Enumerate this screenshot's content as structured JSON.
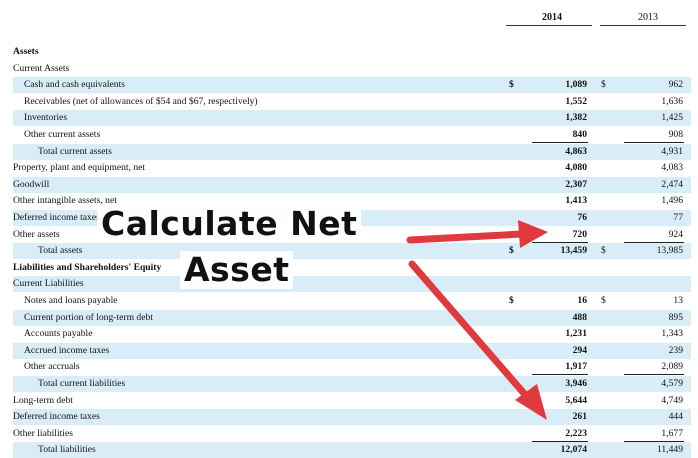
{
  "columns": {
    "year1": "2014",
    "year2": "2013"
  },
  "rows": [
    {
      "label": "Assets",
      "indent": 0,
      "bold": true,
      "shaded": false,
      "c1": "",
      "v1": "",
      "c2": "",
      "v2": ""
    },
    {
      "label": "Current Assets",
      "indent": 0,
      "bold": false,
      "shaded": false,
      "c1": "",
      "v1": "",
      "c2": "",
      "v2": ""
    },
    {
      "label": "Cash and cash equivalents",
      "indent": 1,
      "bold": false,
      "shaded": true,
      "c1": "$",
      "v1": "1,089",
      "c2": "$",
      "v2": "962"
    },
    {
      "label": "Receivables (net of allowances of $54 and $67, respectively)",
      "indent": 1,
      "bold": false,
      "shaded": false,
      "c1": "",
      "v1": "1,552",
      "c2": "",
      "v2": "1,636"
    },
    {
      "label": "Inventories",
      "indent": 1,
      "bold": false,
      "shaded": true,
      "c1": "",
      "v1": "1,382",
      "c2": "",
      "v2": "1,425"
    },
    {
      "label": "Other current assets",
      "indent": 1,
      "bold": false,
      "shaded": false,
      "c1": "",
      "v1": "840",
      "c2": "",
      "v2": "908"
    },
    {
      "label": "Total current assets",
      "indent": 2,
      "bold": false,
      "shaded": true,
      "c1": "",
      "v1": "4,863",
      "c2": "",
      "v2": "4,931"
    },
    {
      "label": "Property, plant and equipment, net",
      "indent": 0,
      "bold": false,
      "shaded": false,
      "c1": "",
      "v1": "4,080",
      "c2": "",
      "v2": "4,083"
    },
    {
      "label": "Goodwill",
      "indent": 0,
      "bold": false,
      "shaded": true,
      "c1": "",
      "v1": "2,307",
      "c2": "",
      "v2": "2,474"
    },
    {
      "label": "Other intangible assets, net",
      "indent": 0,
      "bold": false,
      "shaded": false,
      "c1": "",
      "v1": "1,413",
      "c2": "",
      "v2": "1,496"
    },
    {
      "label": "Deferred income taxes",
      "indent": 0,
      "bold": false,
      "shaded": true,
      "c1": "",
      "v1": "76",
      "c2": "",
      "v2": "77"
    },
    {
      "label": "Other assets",
      "indent": 0,
      "bold": false,
      "shaded": false,
      "c1": "",
      "v1": "720",
      "c2": "",
      "v2": "924"
    },
    {
      "label": "Total assets",
      "indent": 2,
      "bold": false,
      "shaded": true,
      "c1": "$",
      "v1": "13,459",
      "c2": "$",
      "v2": "13,985"
    },
    {
      "label": "Liabilities and Shareholders' Equity",
      "indent": 0,
      "bold": true,
      "shaded": false,
      "c1": "",
      "v1": "",
      "c2": "",
      "v2": ""
    },
    {
      "label": "Current Liabilities",
      "indent": 0,
      "bold": false,
      "shaded": true,
      "c1": "",
      "v1": "",
      "c2": "",
      "v2": ""
    },
    {
      "label": "Notes and loans payable",
      "indent": 1,
      "bold": false,
      "shaded": false,
      "c1": "$",
      "v1": "16",
      "c2": "$",
      "v2": "13"
    },
    {
      "label": "Current portion of long-term debt",
      "indent": 1,
      "bold": false,
      "shaded": true,
      "c1": "",
      "v1": "488",
      "c2": "",
      "v2": "895"
    },
    {
      "label": "Accounts payable",
      "indent": 1,
      "bold": false,
      "shaded": false,
      "c1": "",
      "v1": "1,231",
      "c2": "",
      "v2": "1,343"
    },
    {
      "label": "Accrued income taxes",
      "indent": 1,
      "bold": false,
      "shaded": true,
      "c1": "",
      "v1": "294",
      "c2": "",
      "v2": "239"
    },
    {
      "label": "Other accruals",
      "indent": 1,
      "bold": false,
      "shaded": false,
      "c1": "",
      "v1": "1,917",
      "c2": "",
      "v2": "2,089"
    },
    {
      "label": "Total current liabilities",
      "indent": 2,
      "bold": false,
      "shaded": true,
      "c1": "",
      "v1": "3,946",
      "c2": "",
      "v2": "4,579"
    },
    {
      "label": "Long-term debt",
      "indent": 0,
      "bold": false,
      "shaded": false,
      "c1": "",
      "v1": "5,644",
      "c2": "",
      "v2": "4,749"
    },
    {
      "label": "Deferred income taxes",
      "indent": 0,
      "bold": false,
      "shaded": true,
      "c1": "",
      "v1": "261",
      "c2": "",
      "v2": "444"
    },
    {
      "label": "Other liabilities",
      "indent": 0,
      "bold": false,
      "shaded": false,
      "c1": "",
      "v1": "2,223",
      "c2": "",
      "v2": "1,677"
    },
    {
      "label": "Total liabilities",
      "indent": 2,
      "bold": false,
      "shaded": true,
      "c1": "",
      "v1": "12,074",
      "c2": "",
      "v2": "11,449"
    }
  ],
  "overlay": {
    "line1": "Calculate Net",
    "line2": "Asset"
  },
  "colors": {
    "shade": "#d9edf8",
    "arrow": "#e0393e"
  }
}
